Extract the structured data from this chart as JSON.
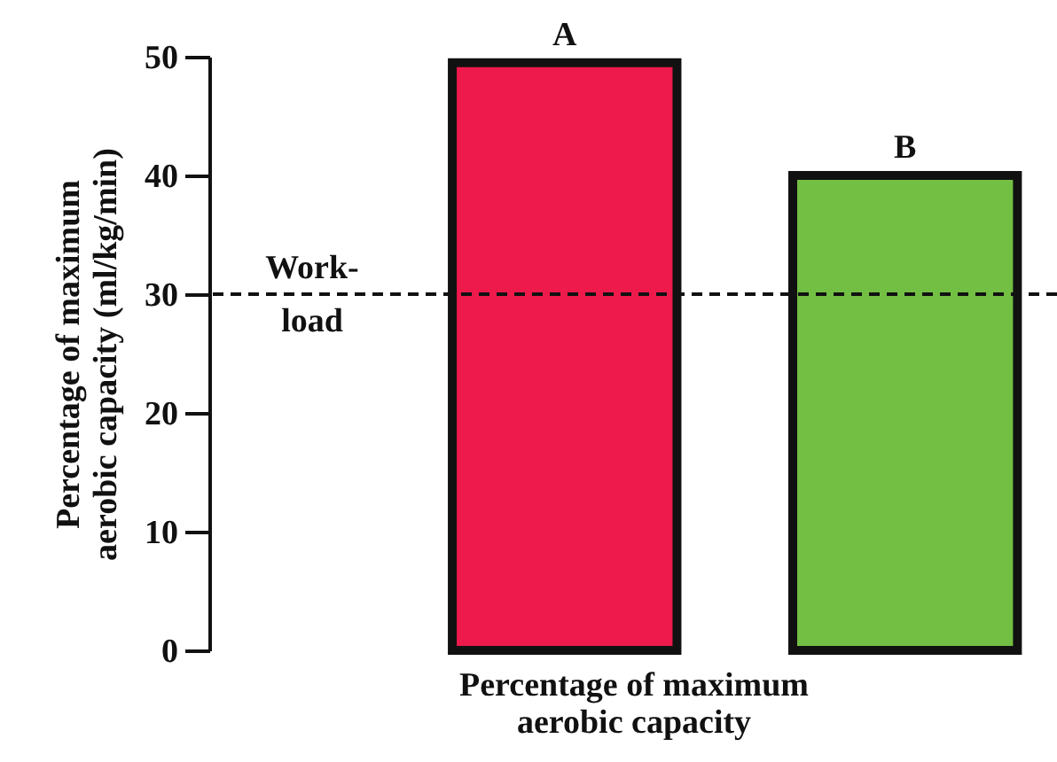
{
  "chart_data": {
    "type": "bar",
    "categories": [
      "A",
      "B"
    ],
    "colors": [
      "#ed1a4b",
      "#72bf44"
    ],
    "values": [
      49.5,
      40
    ],
    "xlabel": "Percentage of maximum aerobic capacity",
    "ylabel": "Percentage of maximum aerobic capacity (ml/kg/min)",
    "ylim": [
      0,
      50
    ],
    "yticks": [
      0,
      10,
      20,
      30,
      40,
      50
    ],
    "grid": false,
    "legend": false,
    "ref_lines": [
      {
        "axis": "y",
        "value": 30,
        "label": "Work-load",
        "line_style": "dashed"
      }
    ]
  }
}
